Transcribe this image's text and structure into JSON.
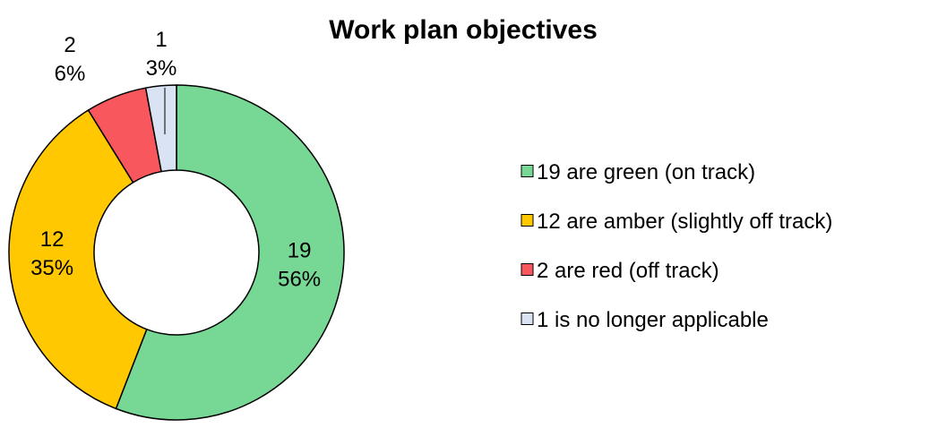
{
  "chart_data": {
    "type": "pie",
    "variant": "doughnut",
    "title": "Work plan objectives",
    "categories": [
      "19 are green (on track)",
      "12 are amber (slightly off track)",
      "2 are red (off track)",
      "1 is no longer applicable"
    ],
    "values": [
      19,
      12,
      2,
      1
    ],
    "percent_labels": [
      "56%",
      "35%",
      "6%",
      "3%"
    ],
    "colors": [
      "#77D795",
      "#FFC800",
      "#F7575D",
      "#DAE3F3"
    ],
    "legend_position": "right",
    "start_angle_deg": 0,
    "direction": "clockwise"
  }
}
